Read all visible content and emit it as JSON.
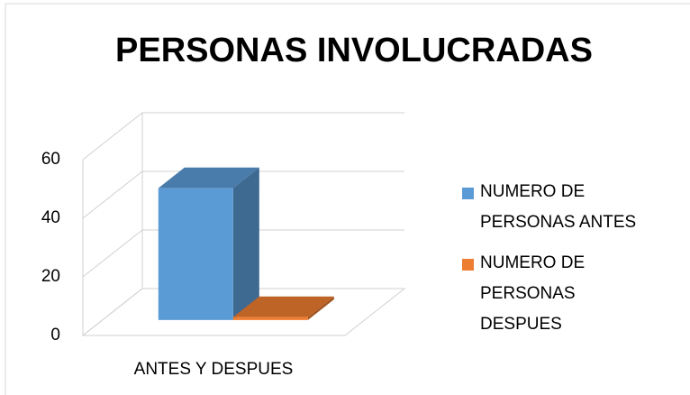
{
  "chart_data": {
    "type": "bar",
    "title": "PERSONAS INVOLUCRADAS",
    "categories": [
      "ANTES Y DESPUES"
    ],
    "series": [
      {
        "name": "NUMERO DE PERSONAS ANTES",
        "color": "#5b9bd5",
        "values": [
          45
        ]
      },
      {
        "name": "NUMERO DE PERSONAS DESPUES",
        "color": "#ed7d31",
        "values": [
          1
        ]
      }
    ],
    "ylim": [
      0,
      60
    ],
    "yticks": [
      0,
      20,
      40,
      60
    ],
    "grid": true
  }
}
